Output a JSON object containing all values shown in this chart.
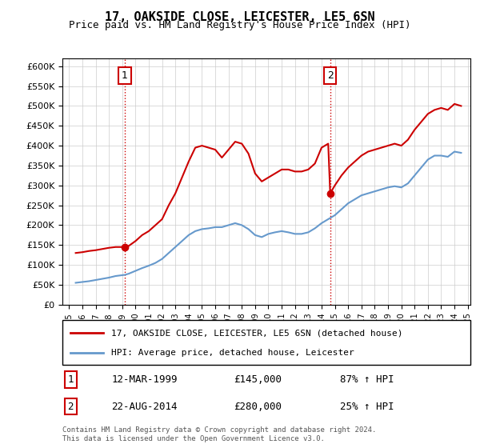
{
  "title": "17, OAKSIDE CLOSE, LEICESTER, LE5 6SN",
  "subtitle": "Price paid vs. HM Land Registry's House Price Index (HPI)",
  "property_label": "17, OAKSIDE CLOSE, LEICESTER, LE5 6SN (detached house)",
  "hpi_label": "HPI: Average price, detached house, Leicester",
  "transaction1_date": "12-MAR-1999",
  "transaction1_price": 145000,
  "transaction1_hpi": "87% ↑ HPI",
  "transaction2_date": "22-AUG-2014",
  "transaction2_price": 280000,
  "transaction2_hpi": "25% ↑ HPI",
  "footer": "Contains HM Land Registry data © Crown copyright and database right 2024.\nThis data is licensed under the Open Government Licence v3.0.",
  "property_color": "#cc0000",
  "hpi_color": "#6699cc",
  "grid_color": "#cccccc",
  "background_color": "#ffffff",
  "ylim": [
    0,
    620000
  ],
  "yticks": [
    0,
    50000,
    100000,
    150000,
    200000,
    250000,
    300000,
    350000,
    400000,
    450000,
    500000,
    550000,
    600000
  ],
  "x_start_year": 1995,
  "x_end_year": 2025,
  "transaction1_x": 1999.2,
  "transaction2_x": 2014.65,
  "vline_color": "#cc0000",
  "vline_style": ":",
  "property_hpi_data": {
    "years": [
      1995.5,
      1996.0,
      1996.5,
      1997.0,
      1997.5,
      1998.0,
      1998.5,
      1999.2,
      1999.5,
      2000.0,
      2000.5,
      2001.0,
      2001.5,
      2002.0,
      2002.5,
      2003.0,
      2003.5,
      2004.0,
      2004.5,
      2005.0,
      2005.5,
      2006.0,
      2006.5,
      2007.0,
      2007.5,
      2008.0,
      2008.5,
      2009.0,
      2009.5,
      2010.0,
      2010.5,
      2011.0,
      2011.5,
      2012.0,
      2012.5,
      2013.0,
      2013.5,
      2014.0,
      2014.5,
      2014.65,
      2015.0,
      2015.5,
      2016.0,
      2016.5,
      2017.0,
      2017.5,
      2018.0,
      2018.5,
      2019.0,
      2019.5,
      2020.0,
      2020.5,
      2021.0,
      2021.5,
      2022.0,
      2022.5,
      2023.0,
      2023.5,
      2024.0,
      2024.5
    ],
    "property_values": [
      130000,
      132000,
      135000,
      137000,
      140000,
      143000,
      145000,
      145000,
      148000,
      160000,
      175000,
      185000,
      200000,
      215000,
      250000,
      280000,
      320000,
      360000,
      395000,
      400000,
      395000,
      390000,
      370000,
      390000,
      410000,
      405000,
      380000,
      330000,
      310000,
      320000,
      330000,
      340000,
      340000,
      335000,
      335000,
      340000,
      355000,
      395000,
      405000,
      280000,
      300000,
      325000,
      345000,
      360000,
      375000,
      385000,
      390000,
      395000,
      400000,
      405000,
      400000,
      415000,
      440000,
      460000,
      480000,
      490000,
      495000,
      490000,
      505000,
      500000
    ],
    "hpi_values": [
      55000,
      57000,
      59000,
      62000,
      65000,
      68000,
      72000,
      75000,
      78000,
      85000,
      92000,
      98000,
      105000,
      115000,
      130000,
      145000,
      160000,
      175000,
      185000,
      190000,
      192000,
      195000,
      195000,
      200000,
      205000,
      200000,
      190000,
      175000,
      170000,
      178000,
      182000,
      185000,
      182000,
      178000,
      178000,
      182000,
      192000,
      205000,
      215000,
      218000,
      225000,
      240000,
      255000,
      265000,
      275000,
      280000,
      285000,
      290000,
      295000,
      298000,
      295000,
      305000,
      325000,
      345000,
      365000,
      375000,
      375000,
      372000,
      385000,
      382000
    ]
  }
}
